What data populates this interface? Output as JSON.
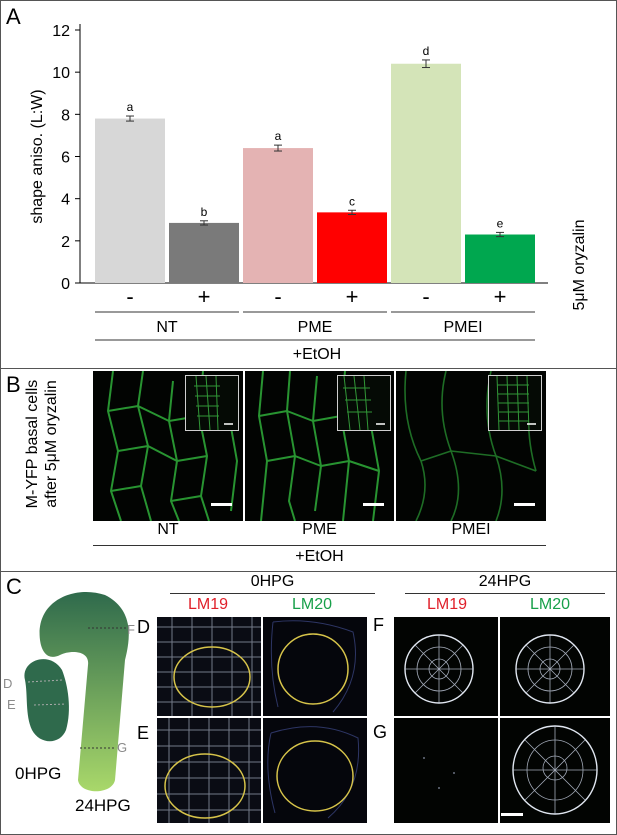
{
  "panels": {
    "a": "A",
    "b": "B",
    "c": "C",
    "d": "D",
    "e": "E",
    "f": "F",
    "g": "G"
  },
  "chart_data": {
    "type": "bar",
    "ylabel": "shape aniso. (L:W)",
    "ylim": [
      0,
      12
    ],
    "yticks": [
      0,
      2,
      4,
      6,
      8,
      10,
      12
    ],
    "categories": [
      "-",
      "+",
      "-",
      "+",
      "-",
      "+"
    ],
    "values": [
      7.8,
      2.85,
      6.4,
      3.35,
      10.4,
      2.3
    ],
    "errors": [
      0.12,
      0.1,
      0.14,
      0.1,
      0.18,
      0.1
    ],
    "letters": [
      "a",
      "b",
      "a",
      "c",
      "d",
      "e"
    ],
    "colors": [
      "#d7d7d7",
      "#7a7a7a",
      "#e4b3b3",
      "#ff0000",
      "#d4e4b8",
      "#00a74f"
    ],
    "groups": [
      "NT",
      "PME",
      "PMEI"
    ],
    "treatment_label": "5μM oryzalin",
    "condition": "+EtOH"
  },
  "panel_b": {
    "ylabel_line1": "M-YFP basal cells",
    "ylabel_line2": "after 5μM oryzalin",
    "labels": [
      "NT",
      "PME",
      "PMEI"
    ],
    "condition": "+EtOH"
  },
  "panel_c": {
    "markers": [
      "D",
      "E",
      "F",
      "G"
    ],
    "stage_early": "0HPG",
    "stage_late": "24HPG"
  },
  "sections": {
    "group_left": "0HPG",
    "group_right": "24HPG",
    "antibody_1": "LM19",
    "antibody_2": "LM20"
  }
}
